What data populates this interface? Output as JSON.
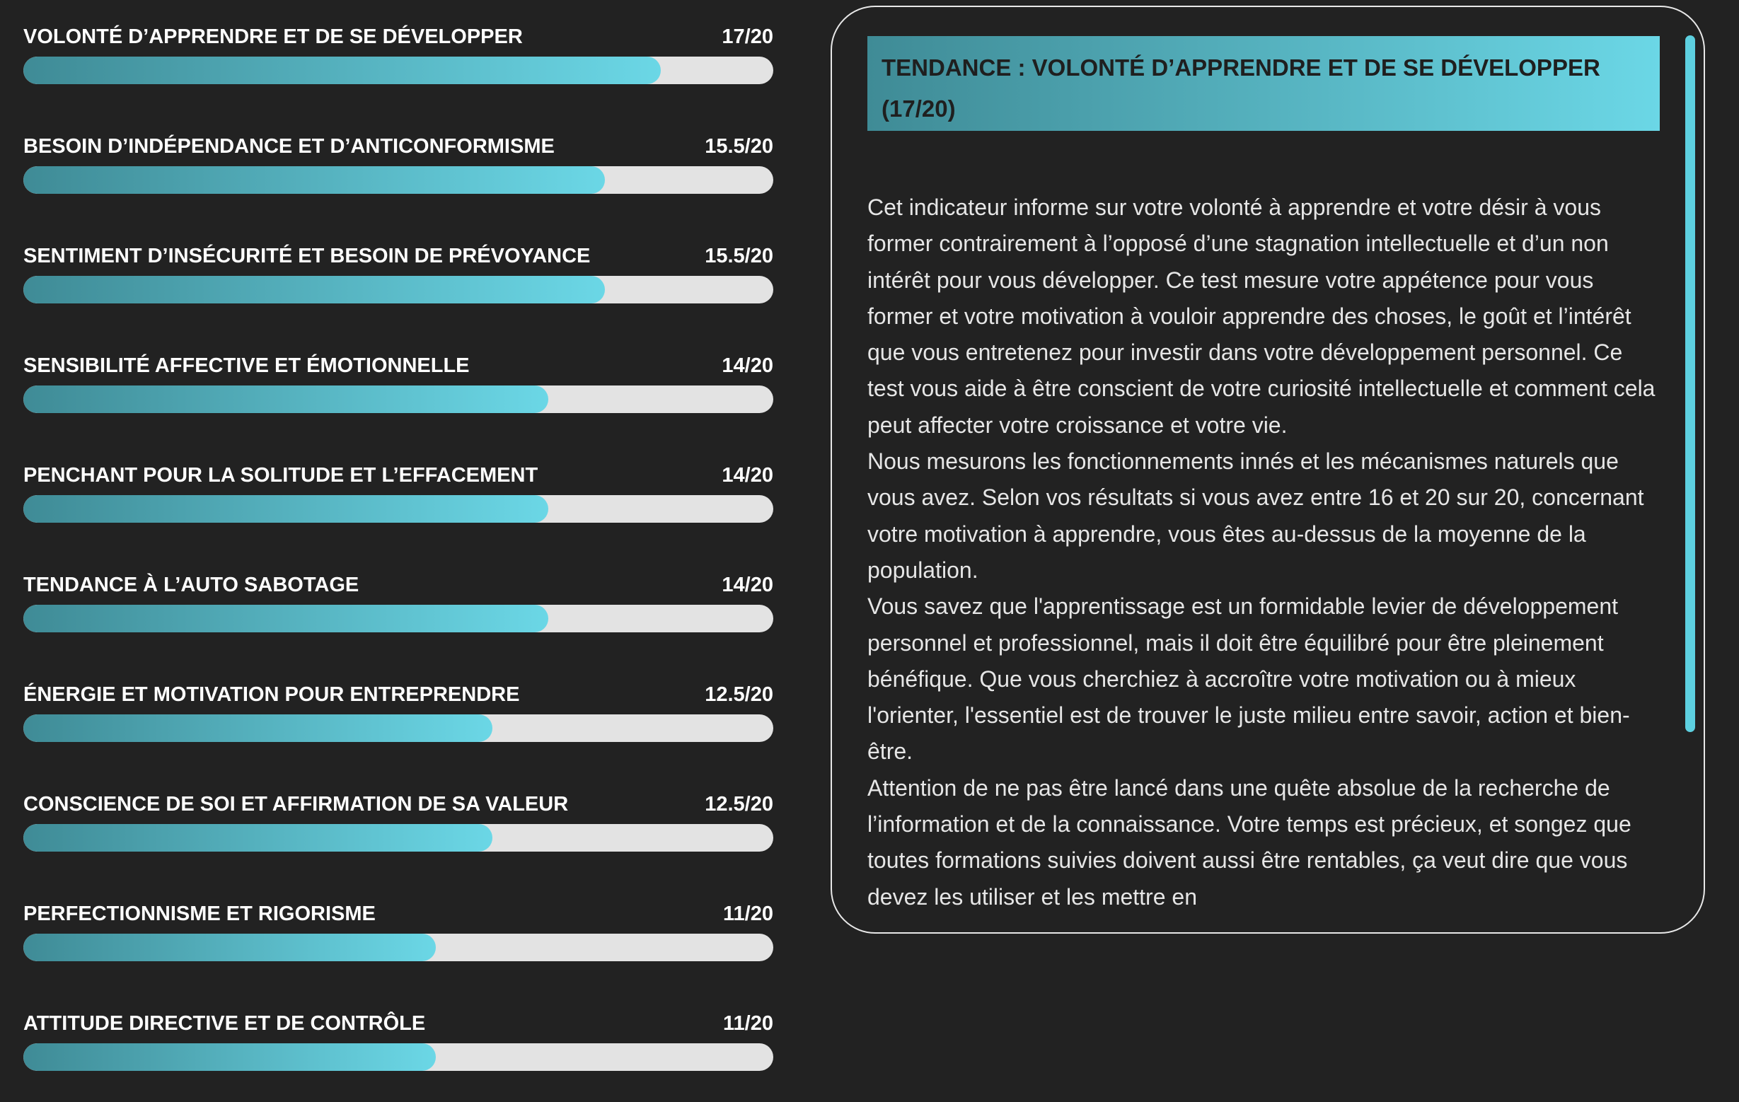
{
  "score_max": 20,
  "scores": [
    {
      "label": "VOLONTÉ D’APPRENDRE ET DE SE DÉVELOPPER",
      "score": 17,
      "score_label": "17/20"
    },
    {
      "label": "BESOIN D’INDÉPENDANCE ET D’ANTICONFORMISME",
      "score": 15.5,
      "score_label": "15.5/20"
    },
    {
      "label": "SENTIMENT D’INSÉCURITÉ ET BESOIN DE PRÉVOYANCE",
      "score": 15.5,
      "score_label": "15.5/20"
    },
    {
      "label": "SENSIBILITÉ AFFECTIVE ET ÉMOTIONNELLE",
      "score": 14,
      "score_label": "14/20"
    },
    {
      "label": "PENCHANT POUR LA SOLITUDE ET L’EFFACEMENT",
      "score": 14,
      "score_label": "14/20"
    },
    {
      "label": "TENDANCE À L’AUTO SABOTAGE",
      "score": 14,
      "score_label": "14/20"
    },
    {
      "label": "ÉNERGIE ET MOTIVATION POUR ENTREPRENDRE",
      "score": 12.5,
      "score_label": "12.5/20"
    },
    {
      "label": "CONSCIENCE DE SOI ET AFFIRMATION DE SA VALEUR",
      "score": 12.5,
      "score_label": "12.5/20"
    },
    {
      "label": "PERFECTIONNISME ET RIGORISME",
      "score": 11,
      "score_label": "11/20"
    },
    {
      "label": "ATTITUDE DIRECTIVE ET DE CONTRÔLE",
      "score": 11,
      "score_label": "11/20"
    }
  ],
  "detail": {
    "title": "TENDANCE : VOLONTÉ D’APPRENDRE ET DE SE DÉVELOPPER (17/20)",
    "paragraphs": [
      "Cet indicateur informe sur votre volonté à apprendre et votre désir à vous former contrairement à l’opposé d’une stagnation intellectuelle et d’un non intérêt pour vous développer. Ce test mesure votre appétence pour vous former et votre motivation à vouloir apprendre des choses, le goût et l’intérêt que vous entretenez pour investir dans votre développement personnel. Ce test vous aide à être conscient de votre curiosité intellectuelle et comment cela peut affecter votre croissance et votre vie.",
      "Nous mesurons les fonctionnements innés et les mécanismes naturels que vous avez.  Selon vos résultats si vous avez entre 16 et 20 sur 20, concernant votre motivation à apprendre, vous êtes au-dessus de la moyenne de la population.",
      "Vous savez que l'apprentissage est un formidable levier de développement personnel et professionnel, mais il doit être équilibré pour être pleinement bénéfique. Que vous cherchiez à accroître votre motivation ou à mieux l'orienter, l'essentiel est de trouver le juste milieu entre savoir, action et bien-être.",
      "Attention de ne pas être lancé dans une quête absolue de la recherche de l’information et de la connaissance. Votre temps est précieux, et songez que toutes formations suivies doivent aussi être rentables, ça veut dire que vous devez les utiliser et les mettre en"
    ]
  }
}
